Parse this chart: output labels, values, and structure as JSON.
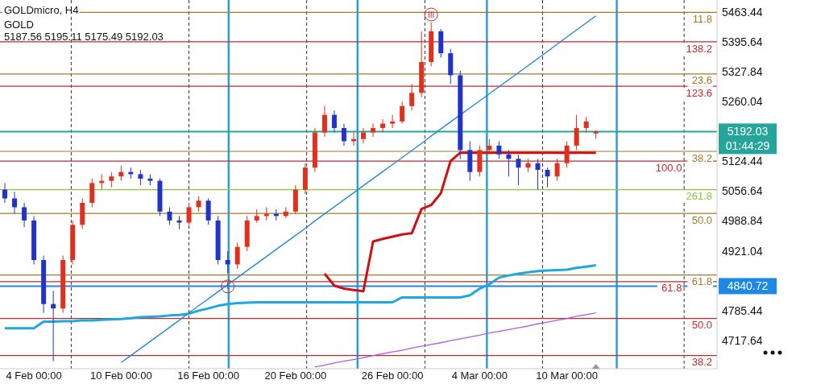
{
  "chart_data": {
    "type": "candlestick",
    "title": "GOLDmicro, H4",
    "subtitle": "GOLD",
    "annotations": [
      "5187.56 5195.11 5175.49 5192.03",
      "01:44:29",
      {
        "text": "III",
        "y": 5458
      },
      {
        "text": "I",
        "y": 4840
      },
      {
        "text": "11.8",
        "y": 5463
      },
      {
        "text": "138.2",
        "y": 5396
      },
      {
        "text": "23.6",
        "y": 5323
      },
      {
        "text": "123.6",
        "y": 5295
      },
      {
        "text": "38.2",
        "y": 5147
      },
      {
        "text": "100.0",
        "y": 5125
      },
      {
        "text": "261.8",
        "y": 5060
      },
      {
        "text": "50.0",
        "y": 5006
      },
      {
        "text": "61.8",
        "y": 4866
      },
      {
        "text": "61.8",
        "y": 4851
      },
      {
        "text": "50.0",
        "y": 4767
      },
      {
        "text": "38.2",
        "y": 4683
      }
    ],
    "categories": [
      null,
      null,
      null,
      "4 Feb 00:00",
      null,
      null,
      null,
      null,
      null,
      null,
      null,
      null,
      "10 Feb 00:00",
      null,
      null,
      null,
      null,
      null,
      null,
      null,
      null,
      "16 Feb 00:00",
      null,
      null,
      null,
      null,
      null,
      null,
      null,
      null,
      "20 Feb 00:00",
      null,
      null,
      null,
      null,
      null,
      null,
      null,
      null,
      null,
      "26 Feb 00:00",
      null,
      null,
      null,
      null,
      null,
      null,
      null,
      null,
      "4 Mar 00:00",
      null,
      null,
      null,
      null,
      null,
      null,
      null,
      null,
      "10 Mar 00:00",
      null,
      null,
      null
    ],
    "ohlc": [
      [
        5060,
        5075,
        5030,
        5040
      ],
      [
        5040,
        5055,
        5005,
        5020
      ],
      [
        5020,
        5030,
        4975,
        4990
      ],
      [
        4990,
        5000,
        4890,
        4900
      ],
      [
        4900,
        4910,
        4780,
        4800
      ],
      [
        4800,
        4830,
        4670,
        4790
      ],
      [
        4790,
        4910,
        4780,
        4900
      ],
      [
        4900,
        4990,
        4890,
        4980
      ],
      [
        4980,
        5040,
        4970,
        5030
      ],
      [
        5030,
        5085,
        5020,
        5075
      ],
      [
        5075,
        5095,
        5060,
        5080
      ],
      [
        5080,
        5100,
        5065,
        5090
      ],
      [
        5090,
        5115,
        5080,
        5100
      ],
      [
        5100,
        5110,
        5085,
        5095
      ],
      [
        5095,
        5105,
        5070,
        5085
      ],
      [
        5085,
        5095,
        5070,
        5080
      ],
      [
        5080,
        5085,
        5000,
        5010
      ],
      [
        5010,
        5020,
        4980,
        4990
      ],
      [
        4990,
        5000,
        4970,
        4985
      ],
      [
        4985,
        5030,
        4980,
        5020
      ],
      [
        5020,
        5045,
        5010,
        5035
      ],
      [
        5035,
        5040,
        4980,
        4990
      ],
      [
        4990,
        5000,
        4890,
        4900
      ],
      [
        4900,
        4920,
        4870,
        4890
      ],
      [
        4890,
        4940,
        4880,
        4930
      ],
      [
        4930,
        5000,
        4920,
        4990
      ],
      [
        4990,
        5015,
        4985,
        5000
      ],
      [
        5000,
        5020,
        4990,
        5005
      ],
      [
        5005,
        5015,
        4990,
        5000
      ],
      [
        5000,
        5020,
        4995,
        5010
      ],
      [
        5010,
        5070,
        5005,
        5060
      ],
      [
        5060,
        5120,
        5050,
        5110
      ],
      [
        5110,
        5200,
        5100,
        5190
      ],
      [
        5190,
        5250,
        5180,
        5230
      ],
      [
        5230,
        5240,
        5190,
        5200
      ],
      [
        5200,
        5210,
        5160,
        5170
      ],
      [
        5170,
        5190,
        5160,
        5175
      ],
      [
        5175,
        5200,
        5165,
        5190
      ],
      [
        5190,
        5210,
        5180,
        5200
      ],
      [
        5200,
        5220,
        5190,
        5210
      ],
      [
        5210,
        5230,
        5200,
        5215
      ],
      [
        5215,
        5260,
        5210,
        5250
      ],
      [
        5250,
        5300,
        5240,
        5280
      ],
      [
        5280,
        5420,
        5270,
        5350
      ],
      [
        5350,
        5440,
        5340,
        5420
      ],
      [
        5420,
        5425,
        5360,
        5370
      ],
      [
        5370,
        5380,
        5300,
        5320
      ],
      [
        5320,
        5330,
        5130,
        5150
      ],
      [
        5150,
        5170,
        5080,
        5100
      ],
      [
        5100,
        5160,
        5090,
        5150
      ],
      [
        5150,
        5175,
        5140,
        5160
      ],
      [
        5160,
        5170,
        5130,
        5140
      ],
      [
        5140,
        5150,
        5090,
        5130
      ],
      [
        5130,
        5140,
        5070,
        5110
      ],
      [
        5110,
        5130,
        5100,
        5120
      ],
      [
        5120,
        5130,
        5060,
        5105
      ],
      [
        5105,
        5110,
        5065,
        5090
      ],
      [
        5090,
        5130,
        5080,
        5120
      ],
      [
        5120,
        5170,
        5110,
        5160
      ],
      [
        5160,
        5230,
        5150,
        5200
      ],
      [
        5200,
        5225,
        5190,
        5215
      ],
      [
        5187.56,
        5195.11,
        5175.49,
        5192.03
      ]
    ],
    "series": [
      {
        "type": "line",
        "color": "#1ea7e0",
        "values": [
          4745,
          4745,
          4745,
          4745,
          4760,
          4760,
          4761,
          4761,
          4763,
          4763,
          4764,
          4765,
          4766,
          4768,
          4770,
          4771,
          4772,
          4774,
          4775,
          4778,
          4785,
          4790,
          4796,
          4800,
          4802,
          4803,
          4804,
          4804,
          4804,
          4804,
          4804,
          4804,
          4804,
          4804,
          4804,
          4804,
          4804,
          4804,
          4804,
          4804,
          4804,
          4815,
          4815,
          4815,
          4815,
          4815,
          4815,
          4815,
          4820,
          4835,
          4845,
          4860,
          4865,
          4869,
          4872,
          4875,
          4876,
          4877,
          4878,
          4882,
          4885,
          4888
        ]
      },
      {
        "type": "line",
        "color": "#d01010",
        "values": [
          null,
          null,
          null,
          null,
          null,
          null,
          null,
          null,
          null,
          null,
          null,
          null,
          null,
          null,
          null,
          null,
          null,
          null,
          null,
          null,
          null,
          null,
          null,
          null,
          null,
          null,
          null,
          null,
          null,
          null,
          null,
          null,
          null,
          4869,
          4842,
          4835,
          4832,
          4829,
          4942,
          4948,
          4953,
          4958,
          4961,
          5016,
          5025,
          5052,
          5125,
          5144,
          5144,
          5144,
          5144,
          5144,
          5144,
          5144,
          5144,
          5144,
          5144,
          5144,
          5144,
          5144,
          5144,
          5144
        ]
      },
      {
        "type": "line",
        "color": "#1e88d6",
        "values": [
          null,
          null,
          null,
          null,
          null,
          null,
          null,
          null,
          null,
          null,
          null,
          null,
          4667,
          4683,
          4699,
          4715,
          4731,
          4747,
          4763,
          4780,
          4796,
          4812,
          4828,
          4844,
          4860,
          4876,
          4892,
          4908,
          4924,
          4940,
          4956,
          4972,
          4989,
          5005,
          5021,
          5037,
          5053,
          5069,
          5085,
          5101,
          5117,
          5133,
          5149,
          5165,
          5182,
          5198,
          5214,
          5230,
          5246,
          5262,
          5278,
          5294,
          5310,
          5326,
          5342,
          5358,
          5374,
          5391,
          5407,
          5423,
          5439,
          5455
        ]
      },
      {
        "type": "line",
        "color": "#b05ce0",
        "values": [
          null,
          null,
          null,
          null,
          null,
          null,
          null,
          null,
          null,
          null,
          null,
          null,
          null,
          null,
          null,
          null,
          null,
          null,
          null,
          null,
          null,
          null,
          null,
          null,
          null,
          null,
          null,
          null,
          null,
          null,
          null,
          null,
          4657,
          4661,
          4666,
          4670,
          4674,
          4678,
          4683,
          4687,
          4691,
          4695,
          4700,
          4704,
          4708,
          4712,
          4717,
          4721,
          4725,
          4729,
          4734,
          4738,
          4742,
          4746,
          4750,
          4755,
          4759,
          4763,
          4767,
          4772,
          4776,
          4780
        ]
      }
    ],
    "ylim": [
      4653,
      5491
    ],
    "yticks": [
      5463.44,
      5395.64,
      5327.84,
      5260.04,
      5124.44,
      5056.64,
      4988.84,
      4921.04,
      4785.44,
      4717.64
    ],
    "ref_lines": [
      {
        "axis": "y",
        "value": 5463,
        "color": "#a07a2a"
      },
      {
        "axis": "y",
        "value": 5396,
        "color": "#c62828"
      },
      {
        "axis": "y",
        "value": 5323,
        "color": "#a07a2a"
      },
      {
        "axis": "y",
        "value": 5295,
        "color": "#c62828"
      },
      {
        "axis": "y",
        "value": 5147,
        "color": "#a07a2a"
      },
      {
        "axis": "y",
        "value": 5125,
        "color": "#c62828"
      },
      {
        "axis": "y",
        "value": 5060,
        "color": "#8cc63f"
      },
      {
        "axis": "y",
        "value": 5006,
        "color": "#a07a2a"
      },
      {
        "axis": "y",
        "value": 4866,
        "color": "#a07a2a"
      },
      {
        "axis": "y",
        "value": 4851,
        "color": "#c62828"
      },
      {
        "axis": "y",
        "value": 4767,
        "color": "#c62828"
      },
      {
        "axis": "y",
        "value": 4683,
        "color": "#c62828"
      },
      {
        "axis": "y",
        "value": 5192.03,
        "label": "5192.03",
        "color": "#26a69a"
      },
      {
        "axis": "y",
        "value": 4840.72,
        "label": "4840.72",
        "color": "#1e88e5"
      }
    ],
    "grid": "x"
  }
}
